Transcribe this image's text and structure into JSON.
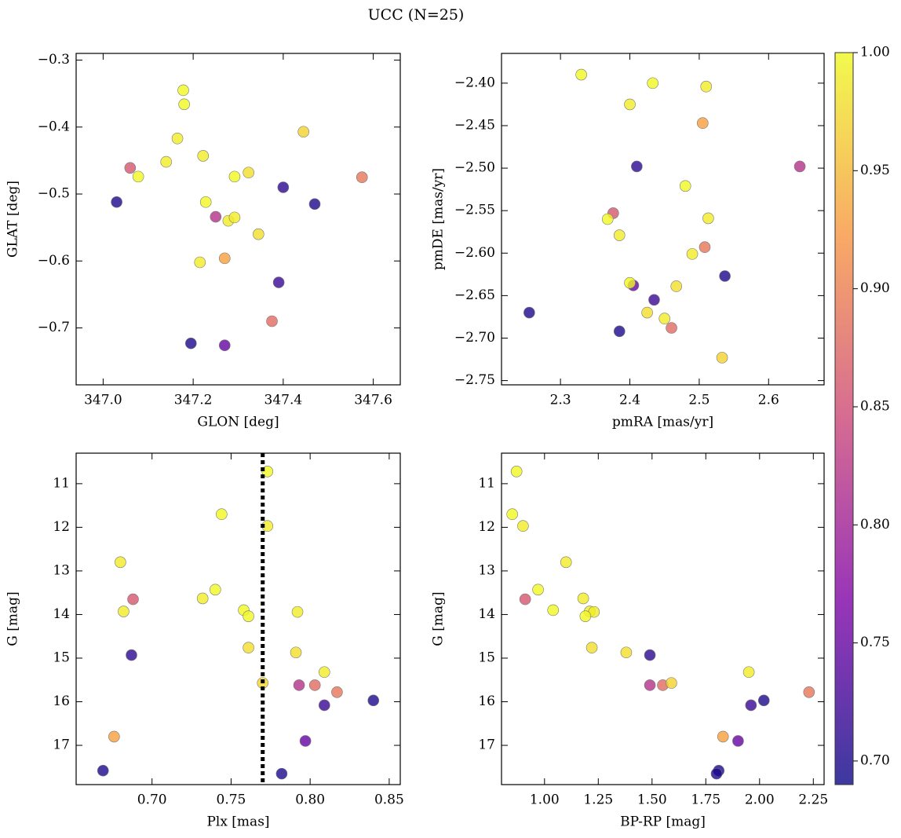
{
  "title": "UCC (N=25)",
  "colorbar": {
    "colormap": "plasma",
    "lim": [
      0.69,
      1.0
    ],
    "ticks": [
      {
        "value": 0.7,
        "label": "0.70"
      },
      {
        "value": 0.75,
        "label": "0.75"
      },
      {
        "value": 0.8,
        "label": "0.80"
      },
      {
        "value": 0.85,
        "label": "0.85"
      },
      {
        "value": 0.9,
        "label": "0.90"
      },
      {
        "value": 0.95,
        "label": "0.95"
      },
      {
        "value": 1.0,
        "label": "1.00"
      }
    ],
    "values": [
      0.7,
      0.71,
      0.7,
      0.72,
      0.7,
      0.75,
      0.82,
      0.86,
      0.89,
      0.88,
      0.93,
      1.0,
      1.0,
      0.99,
      0.99,
      1.0,
      0.99,
      1.0,
      0.99,
      0.99,
      1.0,
      0.98,
      0.98,
      0.99,
      0.97
    ]
  },
  "chart_data": [
    {
      "type": "scatter",
      "x_label": "GLON [deg]",
      "y_label": "GLAT [deg]",
      "x": [
        347.03,
        347.4,
        347.47,
        347.39,
        347.195,
        347.27,
        347.25,
        347.06,
        347.575,
        347.375,
        347.27,
        347.178,
        347.18,
        347.165,
        347.14,
        347.078,
        347.222,
        347.228,
        347.278,
        347.292,
        347.292,
        347.323,
        347.345,
        347.215,
        347.445
      ],
      "y": [
        -0.512,
        -0.49,
        -0.515,
        -0.632,
        -0.723,
        -0.726,
        -0.534,
        -0.461,
        -0.475,
        -0.69,
        -0.596,
        -0.345,
        -0.366,
        -0.417,
        -0.452,
        -0.474,
        -0.443,
        -0.512,
        -0.54,
        -0.535,
        -0.474,
        -0.468,
        -0.56,
        -0.602,
        -0.407
      ],
      "xlim": [
        346.94,
        347.66
      ],
      "xticks": [
        {
          "value": 347.0,
          "label": "347.0"
        },
        347.2,
        347.4,
        347.6
      ],
      "ylim": [
        -0.785,
        -0.29
      ],
      "yticks": [
        {
          "value": -0.7,
          "label": "−0.7"
        },
        {
          "value": -0.6,
          "label": "−0.6"
        },
        {
          "value": -0.5,
          "label": "−0.5"
        },
        {
          "value": -0.4,
          "label": "−0.4"
        },
        {
          "value": -0.3,
          "label": "−0.3"
        }
      ]
    },
    {
      "type": "scatter",
      "x_label": "pmRA [mas/yr]",
      "y_label": "pmDE [mas/yr]",
      "x": [
        2.255,
        2.41,
        2.537,
        2.435,
        2.385,
        2.405,
        2.645,
        2.376,
        2.508,
        2.46,
        2.505,
        2.33,
        2.433,
        2.51,
        2.4,
        2.48,
        2.513,
        2.368,
        2.385,
        2.49,
        2.4,
        2.467,
        2.425,
        2.45,
        2.533
      ],
      "y": [
        -2.67,
        -2.498,
        -2.627,
        -2.655,
        -2.692,
        -2.638,
        -2.498,
        -2.553,
        -2.593,
        -2.688,
        -2.447,
        -2.39,
        -2.4,
        -2.404,
        -2.425,
        -2.521,
        -2.559,
        -2.56,
        -2.579,
        -2.601,
        -2.635,
        -2.639,
        -2.67,
        -2.677,
        -2.723
      ],
      "xlim": [
        2.215,
        2.68
      ],
      "xticks": [
        2.3,
        2.4,
        2.5,
        2.6
      ],
      "ylim": [
        -2.755,
        -2.365
      ],
      "yticks": [
        {
          "value": -2.75,
          "label": "−2.75"
        },
        {
          "value": -2.7,
          "label": "−2.70"
        },
        {
          "value": -2.65,
          "label": "−2.65"
        },
        {
          "value": -2.6,
          "label": "−2.60"
        },
        {
          "value": -2.55,
          "label": "−2.55"
        },
        {
          "value": -2.5,
          "label": "−2.50"
        },
        {
          "value": -2.45,
          "label": "−2.45"
        },
        {
          "value": -2.4,
          "label": "−2.40"
        }
      ]
    },
    {
      "type": "scatter",
      "x_label": "Plx [mas]",
      "y_label": "G [mag]",
      "x": [
        0.669,
        0.687,
        0.84,
        0.809,
        0.782,
        0.797,
        0.793,
        0.688,
        0.817,
        0.803,
        0.676,
        0.773,
        0.744,
        0.773,
        0.68,
        0.74,
        0.732,
        0.758,
        0.682,
        0.792,
        0.761,
        0.761,
        0.791,
        0.809,
        0.77
      ],
      "y": [
        17.58,
        14.93,
        15.97,
        16.08,
        17.65,
        16.9,
        15.62,
        13.65,
        15.78,
        15.62,
        16.8,
        10.72,
        11.7,
        11.97,
        12.8,
        13.43,
        13.63,
        13.9,
        13.93,
        13.94,
        14.04,
        14.76,
        14.87,
        15.32,
        15.57
      ],
      "xlim": [
        0.652,
        0.857
      ],
      "xticks": [
        {
          "value": 0.7,
          "label": "0.70"
        },
        0.75,
        {
          "value": 0.8,
          "label": "0.80"
        },
        0.85
      ],
      "ylim": [
        17.9,
        10.3
      ],
      "yticks": [
        11,
        12,
        13,
        14,
        15,
        16,
        17
      ],
      "vline": 0.77
    },
    {
      "type": "scatter",
      "x_label": "BP-RP [mag]",
      "y_label": "G [mag]",
      "x": [
        1.81,
        1.49,
        2.02,
        1.96,
        1.8,
        1.9,
        1.49,
        0.91,
        2.23,
        1.55,
        1.83,
        0.87,
        0.85,
        0.9,
        1.1,
        0.97,
        1.18,
        1.04,
        1.21,
        1.23,
        1.19,
        1.22,
        1.38,
        1.95,
        1.59
      ],
      "y": [
        17.58,
        14.93,
        15.97,
        16.08,
        17.65,
        16.9,
        15.62,
        13.65,
        15.78,
        15.62,
        16.8,
        10.72,
        11.7,
        11.97,
        12.8,
        13.43,
        13.63,
        13.9,
        13.93,
        13.94,
        14.04,
        14.76,
        14.87,
        15.32,
        15.57
      ],
      "xlim": [
        0.8,
        2.3
      ],
      "xticks": [
        {
          "value": 1.0,
          "label": "1.00"
        },
        1.25,
        {
          "value": 1.5,
          "label": "1.50"
        },
        1.75,
        {
          "value": 2.0,
          "label": "2.00"
        },
        2.25
      ],
      "ylim": [
        17.9,
        10.3
      ],
      "yticks": [
        11,
        12,
        13,
        14,
        15,
        16,
        17
      ]
    }
  ]
}
